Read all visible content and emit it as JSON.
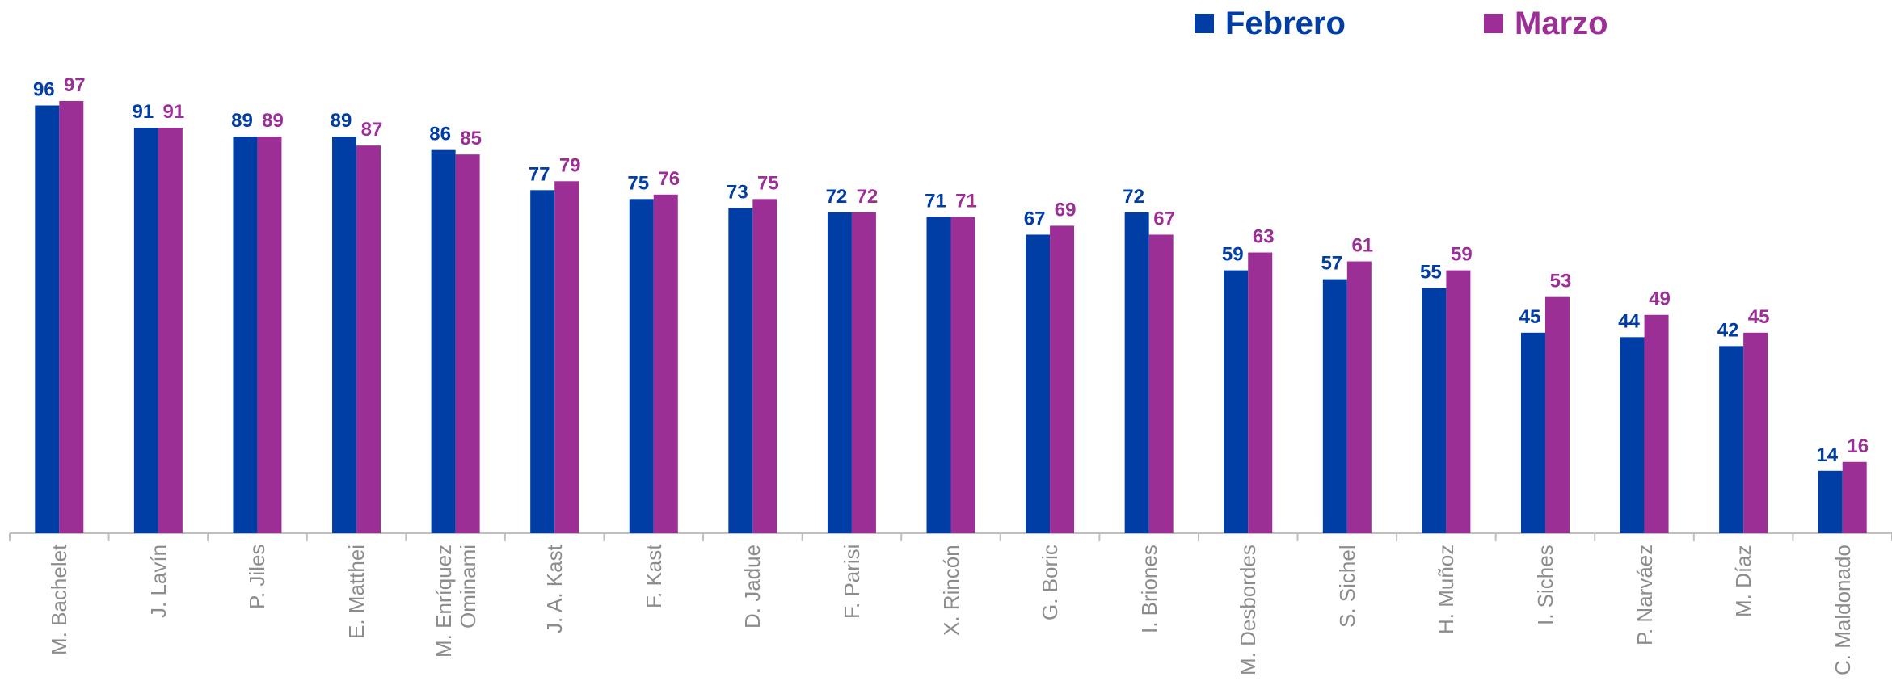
{
  "chart_data": {
    "type": "bar",
    "categories": [
      "M. Bachelet",
      "J. Lavín",
      "P. Jiles",
      "E. Matthei",
      "M. Enríquez\nOminami",
      "J. A. Kast",
      "F. Kast",
      "D. Jadue",
      "F. Parisi",
      "X. Rincón",
      "G. Boric",
      "I. Briones",
      "M. Desbordes",
      "S. Sichel",
      "H. Muñoz",
      "I. Siches",
      "P. Narváez",
      "M. Díaz",
      "C. Maldonado"
    ],
    "series": [
      {
        "name": "Febrero",
        "color": "#003da5",
        "values": [
          96,
          91,
          89,
          89,
          86,
          77,
          75,
          73,
          72,
          71,
          67,
          72,
          59,
          57,
          55,
          45,
          44,
          42,
          14
        ]
      },
      {
        "name": "Marzo",
        "color": "#9b2f96",
        "values": [
          97,
          91,
          89,
          87,
          85,
          79,
          76,
          75,
          72,
          71,
          69,
          67,
          63,
          61,
          59,
          53,
          49,
          45,
          16
        ]
      }
    ],
    "legend": "top-right"
  }
}
